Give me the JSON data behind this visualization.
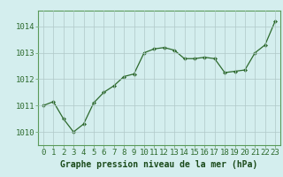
{
  "x": [
    0,
    1,
    2,
    3,
    4,
    5,
    6,
    7,
    8,
    9,
    10,
    11,
    12,
    13,
    14,
    15,
    16,
    17,
    18,
    19,
    20,
    21,
    22,
    23
  ],
  "y": [
    1011.0,
    1011.15,
    1010.5,
    1010.0,
    1010.3,
    1011.1,
    1011.5,
    1011.75,
    1012.1,
    1012.2,
    1013.0,
    1013.15,
    1013.2,
    1013.1,
    1012.78,
    1012.78,
    1012.83,
    1012.78,
    1012.25,
    1012.3,
    1012.35,
    1013.0,
    1013.3,
    1014.2
  ],
  "line_color": "#2d6a2d",
  "marker": "D",
  "marker_size": 2.2,
  "bg_color": "#d4eeee",
  "plot_bg_color": "#d4eeee",
  "grid_color": "#b0c8c8",
  "xlabel": "Graphe pression niveau de la mer (hPa)",
  "xlabel_color": "#1a4a1a",
  "tick_color": "#2d6a2d",
  "ylabel_ticks": [
    1010,
    1011,
    1012,
    1013,
    1014
  ],
  "xlim": [
    -0.5,
    23.5
  ],
  "ylim": [
    1009.5,
    1014.6
  ],
  "font_size_xlabel": 7.0,
  "font_size_ticks": 6.5,
  "bottom_bar_color": "#3a7a3a",
  "spine_color": "#5a9a5a"
}
